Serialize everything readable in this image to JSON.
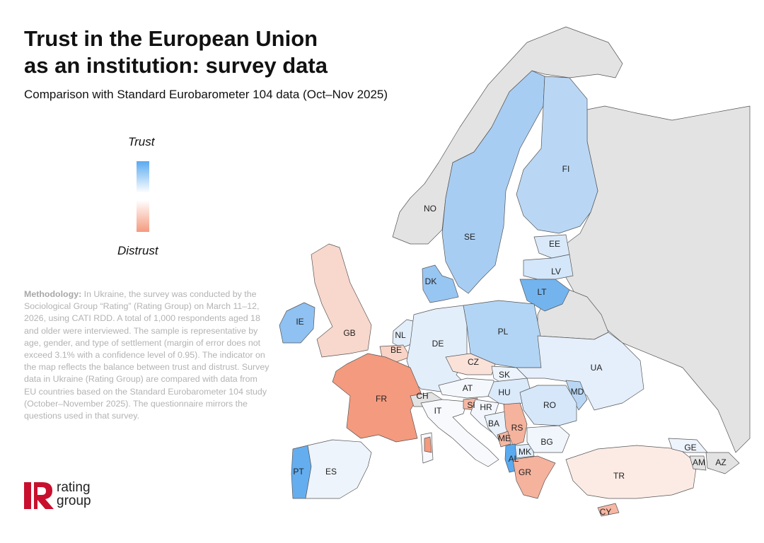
{
  "title_lines": [
    "Trust in the European Union",
    "as an institution: survey data"
  ],
  "subtitle": "Comparison with Standard Eurobarometer 104 data (Oct–Nov 2025)",
  "legend": {
    "top_label": "Trust",
    "bottom_label": "Distrust",
    "color_trust": "#5aaaf0",
    "color_neutral": "#ffffff",
    "color_distrust": "#f49a7e"
  },
  "methodology": {
    "label": "Methodology:",
    "text": " In Ukraine, the survey was conducted by the Sociological Group “Rating” (Rating Group) on March 11–12, 2026, using CATI RDD. A total of 1,000 respondents aged 18 and older were interviewed. The sample is representative by age, gender, and type of settlement (margin of error does not exceed 3.1% with a confidence level of 0.95). The indicator on the map reflects the balance between trust and distrust. Survey data in Ukraine (Rating Group) are compared with data from EU countries based on the Standard Eurobarometer 104 study (October–November 2025). The questionnaire mirrors the questions used in that survey."
  },
  "logo": {
    "line1": "rating",
    "line2": "group",
    "brand_color": "#c8102e"
  },
  "map": {
    "no_data_color": "#e3e3e3",
    "countries": [
      {
        "code": "NO",
        "fill": "#e3e3e3"
      },
      {
        "code": "SE",
        "fill": "#a8cdf3"
      },
      {
        "code": "FI",
        "fill": "#b9d7f5"
      },
      {
        "code": "EE",
        "fill": "#d9e9fa"
      },
      {
        "code": "LV",
        "fill": "#d3e6fa"
      },
      {
        "code": "LT",
        "fill": "#74b4ee"
      },
      {
        "code": "DK",
        "fill": "#98c6f3"
      },
      {
        "code": "IE",
        "fill": "#8fc1f2"
      },
      {
        "code": "GB",
        "fill": "#f8d7cc"
      },
      {
        "code": "NL",
        "fill": "#e3eefb"
      },
      {
        "code": "BE",
        "fill": "#f9d3c5"
      },
      {
        "code": "DE",
        "fill": "#e3eefb"
      },
      {
        "code": "PL",
        "fill": "#b3d5f5"
      },
      {
        "code": "CZ",
        "fill": "#fbe2d9"
      },
      {
        "code": "SK",
        "fill": "#eef4fc"
      },
      {
        "code": "AT",
        "fill": "#f4f8fd"
      },
      {
        "code": "HU",
        "fill": "#dbeafa"
      },
      {
        "code": "UA",
        "fill": "#e5effb"
      },
      {
        "code": "MD",
        "fill": "#b9d7f5"
      },
      {
        "code": "RO",
        "fill": "#d6e7fa"
      },
      {
        "code": "FR",
        "fill": "#f49a7e"
      },
      {
        "code": "CH",
        "fill": "#e3e3e3"
      },
      {
        "code": "IT",
        "fill": "#f7f9fd"
      },
      {
        "code": "SI",
        "fill": "#f6b7a3"
      },
      {
        "code": "HR",
        "fill": "#f3f7fd"
      },
      {
        "code": "BA",
        "fill": "#e9f1fb"
      },
      {
        "code": "RS",
        "fill": "#f5b29c"
      },
      {
        "code": "ME",
        "fill": "#f6b7a3"
      },
      {
        "code": "MK",
        "fill": "#dfecfa"
      },
      {
        "code": "AL",
        "fill": "#5aaaf0"
      },
      {
        "code": "BG",
        "fill": "#f1f6fd"
      },
      {
        "code": "GR",
        "fill": "#f5b29c"
      },
      {
        "code": "TR",
        "fill": "#fcebe5"
      },
      {
        "code": "CY",
        "fill": "#f6b7a3"
      },
      {
        "code": "PT",
        "fill": "#64aef0"
      },
      {
        "code": "ES",
        "fill": "#edf4fc"
      },
      {
        "code": "GE",
        "fill": "#eef4fc"
      },
      {
        "code": "AM",
        "fill": "#e3e3e3"
      },
      {
        "code": "AZ",
        "fill": "#e3e3e3"
      },
      {
        "code": "RU",
        "fill": "#e3e3e3"
      },
      {
        "code": "BY",
        "fill": "#e3e3e3"
      }
    ]
  }
}
